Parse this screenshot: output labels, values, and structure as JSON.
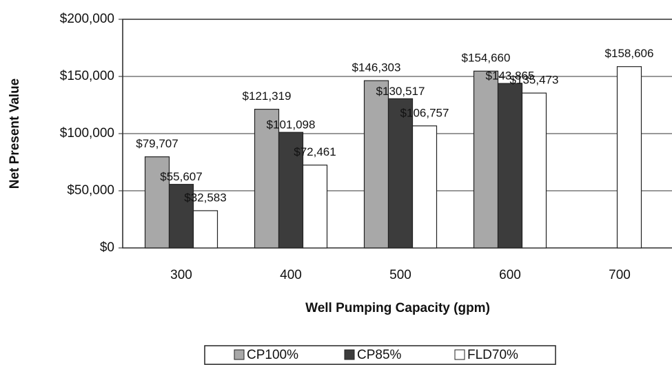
{
  "chart_data": {
    "type": "bar",
    "x_label": "Well Pumping Capacity (gpm)",
    "y_label": "Net Present Value",
    "categories": [
      "300",
      "400",
      "500",
      "600",
      "700"
    ],
    "series": [
      {
        "name": "CP100%",
        "color": "#a8a8a8",
        "values": [
          79707,
          121319,
          146303,
          154660,
          null
        ],
        "value_labels": [
          "$79,707",
          "$121,319",
          "$146,303",
          "$154,660",
          null
        ]
      },
      {
        "name": "CP85%",
        "color": "#3c3c3c",
        "values": [
          55607,
          101098,
          130517,
          143865,
          null
        ],
        "value_labels": [
          "$55,607",
          "$101,098",
          "$130,517",
          "$143,865",
          null
        ]
      },
      {
        "name": "FLD70%",
        "color": "#ffffff",
        "values": [
          32583,
          72461,
          106757,
          135473,
          158606
        ],
        "value_labels": [
          "$32,583",
          "$72,461",
          "$106,757",
          "$135,473",
          "$158,606"
        ]
      }
    ],
    "ylim": [
      0,
      200000
    ],
    "yticks": [
      {
        "value": 0,
        "label": "$0"
      },
      {
        "value": 50000,
        "label": "$50,000"
      },
      {
        "value": 100000,
        "label": "$100,000"
      },
      {
        "value": 150000,
        "label": "$150,000"
      },
      {
        "value": 200000,
        "label": "$200,000"
      }
    ],
    "grid": true,
    "legend": "bottom"
  }
}
